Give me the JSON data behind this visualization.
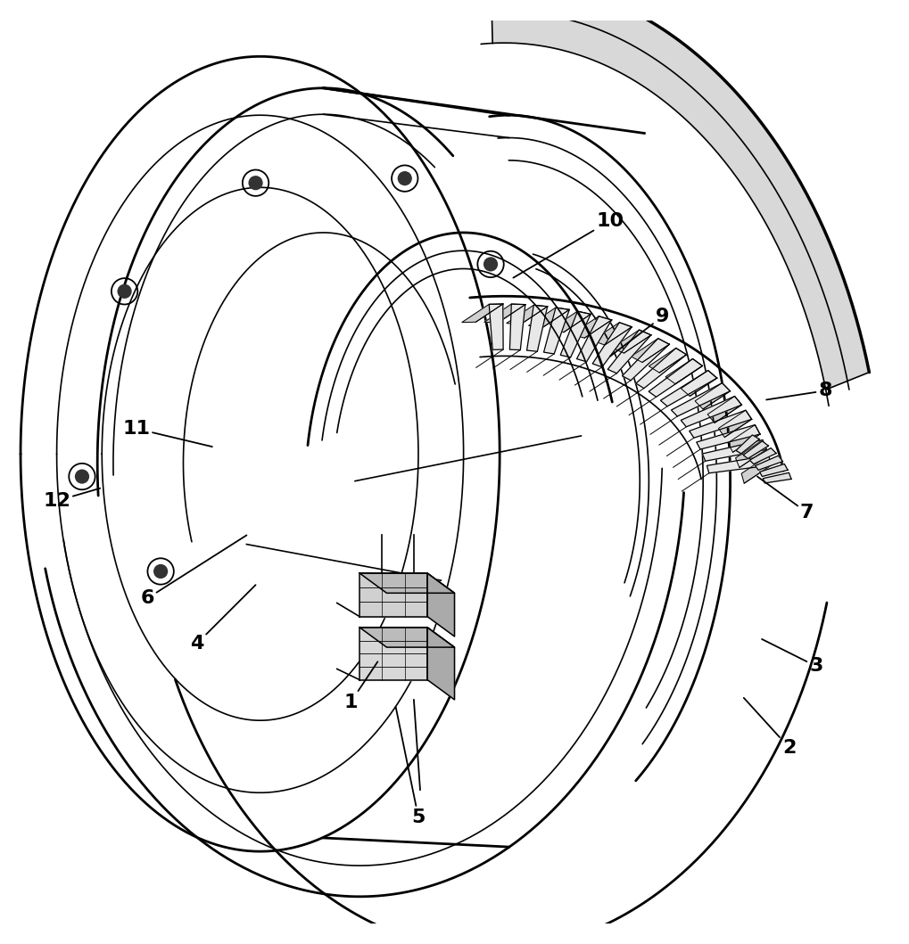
{
  "bg_color": "#ffffff",
  "line_color": "#000000",
  "lw_main": 2.0,
  "lw_thin": 1.2,
  "lw_thick": 2.5,
  "figsize": [
    10.19,
    10.59
  ],
  "dpi": 100,
  "annotations": {
    "1": [
      0.385,
      0.245,
      0.415,
      0.29
    ],
    "2": [
      0.87,
      0.195,
      0.82,
      0.25
    ],
    "3": [
      0.9,
      0.285,
      0.84,
      0.315
    ],
    "4": [
      0.215,
      0.31,
      0.28,
      0.375
    ],
    "5": [
      0.46,
      0.118,
      0.435,
      0.24
    ],
    "6": [
      0.16,
      0.36,
      0.27,
      0.43
    ],
    "7": [
      0.89,
      0.455,
      0.835,
      0.495
    ],
    "8": [
      0.91,
      0.59,
      0.845,
      0.58
    ],
    "9": [
      0.73,
      0.672,
      0.672,
      0.628
    ],
    "10": [
      0.672,
      0.778,
      0.565,
      0.715
    ],
    "11": [
      0.148,
      0.548,
      0.232,
      0.528
    ],
    "12": [
      0.06,
      0.468,
      0.108,
      0.482
    ]
  },
  "label_fontsize": 16
}
